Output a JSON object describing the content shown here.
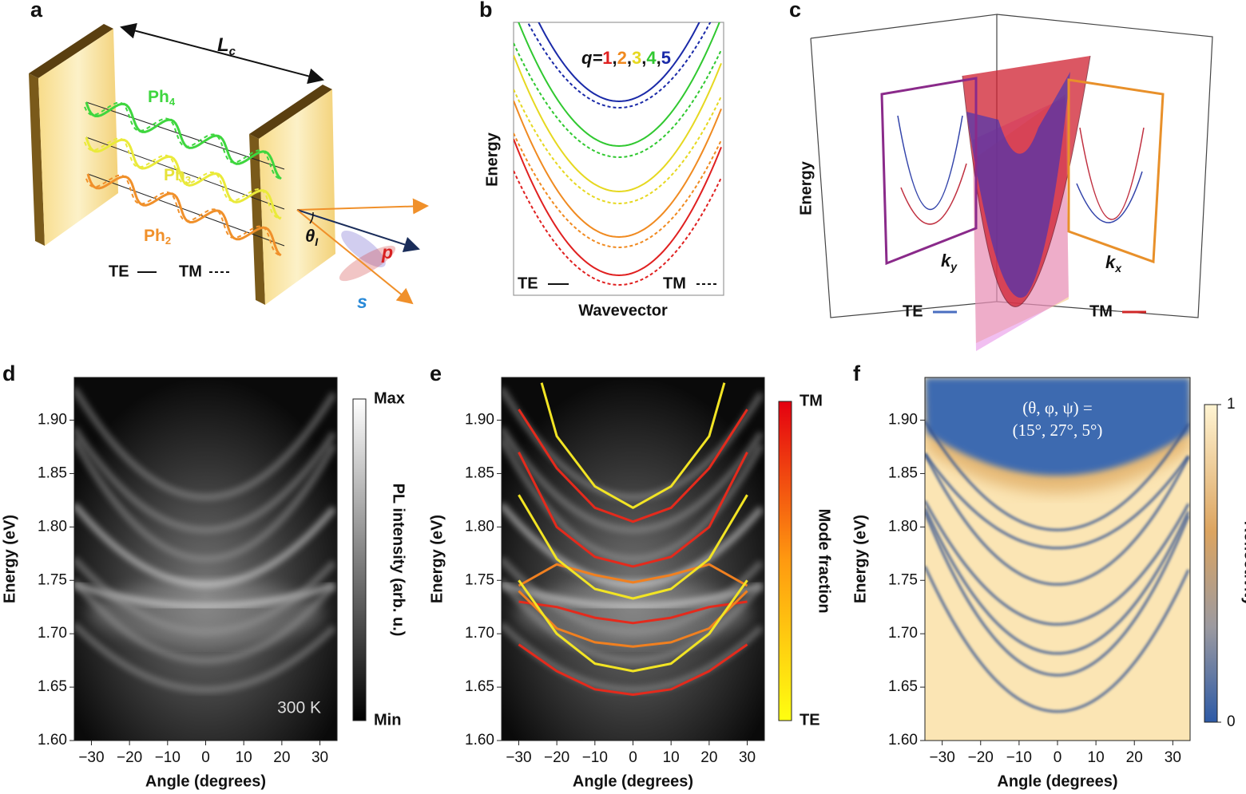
{
  "panels": {
    "a": {
      "label": "a",
      "cavity_length": {
        "text": "L",
        "sub": "c"
      },
      "photons": [
        {
          "text": "Ph",
          "sub": "4"
        },
        {
          "text": "Ph",
          "sub": "3"
        },
        {
          "text": "Ph",
          "sub": "2"
        }
      ],
      "legend": [
        "TE",
        "TM"
      ],
      "angle": {
        "text": "θ",
        "sub": "I"
      },
      "polarizations": [
        "p",
        "s"
      ]
    },
    "b": {
      "label": "b",
      "q_label": "q=",
      "q_values": [
        1,
        2,
        3,
        4,
        5
      ],
      "separator": ",",
      "ylabel": "Energy",
      "xlabel": "Wavevector",
      "legend": [
        "TE",
        "TM"
      ]
    },
    "c": {
      "label": "c",
      "ylabel": "Energy",
      "ky": {
        "text": "k",
        "sub": "y"
      },
      "kx": {
        "text": "k",
        "sub": "x"
      },
      "legend": [
        "TE",
        "TM"
      ]
    }
  },
  "chart_data": [
    {
      "type": "heatmap",
      "panel_label": "d",
      "xlabel": "Angle (degrees)",
      "ylabel": "Energy (eV)",
      "xlim": [
        -34.5,
        34.5
      ],
      "ylim": [
        1.6,
        1.94
      ],
      "xticks": [
        {
          "value": -30,
          "label": "−30"
        },
        {
          "value": -20,
          "label": "−20"
        },
        {
          "value": -10,
          "label": "−10"
        },
        0,
        10,
        20,
        30
      ],
      "yticks": [
        {
          "value": 1.6,
          "label": "1.60"
        },
        1.65,
        {
          "value": 1.7,
          "label": "1.70"
        },
        1.75,
        {
          "value": 1.8,
          "label": "1.80"
        },
        1.85,
        {
          "value": 1.9,
          "label": "1.90"
        }
      ],
      "colorbar": {
        "label": "PL intensity (arb. u.)",
        "max_label": "Max",
        "min_label": "Min"
      },
      "annotation": "300 K"
    },
    {
      "type": "heatmap",
      "panel_label": "e",
      "xlabel": "Angle (degrees)",
      "ylabel": "Energy (eV)",
      "xlim": [
        -34.5,
        34.5
      ],
      "ylim": [
        1.6,
        1.94
      ],
      "xticks": [
        {
          "value": -30,
          "label": "−30"
        },
        {
          "value": -20,
          "label": "−20"
        },
        {
          "value": -10,
          "label": "−10"
        },
        0,
        10,
        20,
        30
      ],
      "yticks": [
        {
          "value": 1.6,
          "label": "1.60"
        },
        1.65,
        {
          "value": 1.7,
          "label": "1.70"
        },
        1.75,
        {
          "value": 1.8,
          "label": "1.80"
        },
        1.85,
        {
          "value": 1.9,
          "label": "1.90"
        }
      ],
      "colorbar": {
        "label": "Mode fraction",
        "max_label": "TM",
        "min_label": "TE"
      },
      "series": [
        {
          "color": "#f2e424",
          "x": [
            -24,
            -20,
            -10,
            0,
            10,
            20,
            24
          ],
          "values": [
            1.935,
            1.885,
            1.838,
            1.818,
            1.838,
            1.885,
            1.935
          ]
        },
        {
          "color": "#e42a1c",
          "x": [
            -30,
            -20,
            -10,
            0,
            10,
            20,
            30
          ],
          "values": [
            1.91,
            1.855,
            1.818,
            1.805,
            1.818,
            1.855,
            1.91
          ]
        },
        {
          "color": "#e42a1c",
          "x": [
            -30,
            -20,
            -10,
            0,
            10,
            20,
            30
          ],
          "values": [
            1.87,
            1.8,
            1.772,
            1.763,
            1.772,
            1.8,
            1.87
          ]
        },
        {
          "color": "#f08020",
          "x": [
            -30,
            -20,
            -10,
            0,
            10,
            20,
            30
          ],
          "values": [
            1.745,
            1.765,
            1.755,
            1.748,
            1.755,
            1.765,
            1.745
          ]
        },
        {
          "color": "#f2e424",
          "x": [
            -30,
            -20,
            -10,
            0,
            10,
            20,
            30
          ],
          "values": [
            1.83,
            1.77,
            1.742,
            1.733,
            1.742,
            1.77,
            1.83
          ]
        },
        {
          "color": "#e42a1c",
          "x": [
            -30,
            -20,
            -10,
            0,
            10,
            20,
            30
          ],
          "values": [
            1.73,
            1.725,
            1.715,
            1.71,
            1.715,
            1.725,
            1.73
          ]
        },
        {
          "color": "#f08020",
          "x": [
            -30,
            -20,
            -10,
            0,
            10,
            20,
            30
          ],
          "values": [
            1.74,
            1.705,
            1.692,
            1.688,
            1.692,
            1.705,
            1.74
          ]
        },
        {
          "color": "#f2e424",
          "x": [
            -30,
            -20,
            -10,
            0,
            10,
            20,
            30
          ],
          "values": [
            1.75,
            1.7,
            1.672,
            1.665,
            1.672,
            1.7,
            1.75
          ]
        },
        {
          "color": "#e42a1c",
          "x": [
            -30,
            -20,
            -10,
            0,
            10,
            20,
            30
          ],
          "values": [
            1.69,
            1.665,
            1.648,
            1.643,
            1.648,
            1.665,
            1.69
          ]
        }
      ]
    },
    {
      "type": "heatmap",
      "panel_label": "f",
      "xlabel": "Angle (degrees)",
      "ylabel": "Energy (eV)",
      "xlim": [
        -34.5,
        34.5
      ],
      "ylim": [
        1.6,
        1.94
      ],
      "xticks": [
        {
          "value": -30,
          "label": "−30"
        },
        {
          "value": -20,
          "label": "−20"
        },
        {
          "value": -10,
          "label": "−10"
        },
        0,
        10,
        20,
        30
      ],
      "yticks": [
        {
          "value": 1.6,
          "label": "1.60"
        },
        1.65,
        {
          "value": 1.7,
          "label": "1.70"
        },
        1.75,
        {
          "value": 1.8,
          "label": "1.80"
        },
        1.85,
        {
          "value": 1.9,
          "label": "1.90"
        }
      ],
      "colorbar": {
        "label": "Reflectivity",
        "ticks": [
          0,
          1
        ]
      },
      "annotation": [
        "(θ, φ, ψ) =",
        "(15°, 27°, 5°)"
      ]
    }
  ]
}
